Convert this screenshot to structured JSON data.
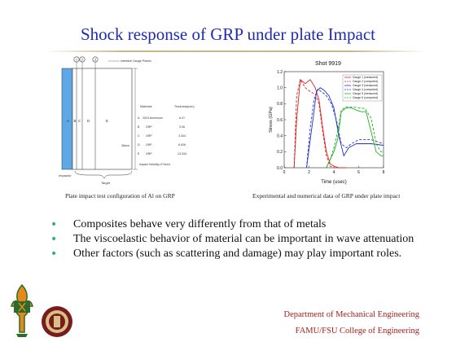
{
  "slide": {
    "title": "Shock response of GRP under plate Impact",
    "left_caption": "Plate impact test configuration of Al on GRP",
    "right_caption": "Experimental and numerical data of GRP under plate impact",
    "bullets": [
      "Composites behave very differently from that of metals",
      "The viscoelastic behavior of material can be important in wave attenuation",
      "Other factors (such as scattering and damage) may play important roles."
    ],
    "footer": {
      "line1": "Department of Mechanical Engineering",
      "line2": "FAMU/FSU College of Engineering"
    }
  },
  "diagram": {
    "gauge_numbers": [
      "1",
      "2",
      "3"
    ],
    "gauge_label": "Interface Gauge Planes",
    "layer_letters": [
      "A",
      "B",
      "C",
      "D",
      "E"
    ],
    "impactor_label": "Impactor",
    "target_label": "Target",
    "dim_label": "38mm",
    "table_header": [
      "Materials",
      "Thickness(mm)"
    ],
    "table_rows": [
      [
        "A",
        "2024 Aluminum",
        "6.4?"
      ],
      [
        "B",
        "GRP",
        "3.06"
      ],
      [
        "C",
        "GRP",
        "3.344"
      ],
      [
        "D",
        "GRP",
        "6.926"
      ],
      [
        "E",
        "GRP",
        "13.334"
      ]
    ],
    "velocity_note": "Impact Velocity=274m/s"
  },
  "chart_data": {
    "type": "line",
    "title": "Shot 9919",
    "xlabel": "Time (usec)",
    "ylabel": "Stress (GPa)",
    "xlim": [
      0,
      8
    ],
    "ylim": [
      0,
      1.2
    ],
    "xticks": [
      "0",
      "2",
      "4",
      "6",
      "8"
    ],
    "yticks": [
      "0.0",
      "0.2",
      "0.4",
      "0.6",
      "0.8",
      "1.0",
      "1.2"
    ],
    "series": [
      {
        "name": "Gauge 1 (measured)",
        "color": "#e02020",
        "dash": "",
        "x": [
          0.8,
          1.0,
          1.3,
          1.7,
          2.1,
          2.5,
          2.8,
          3.1,
          3.4,
          3.7,
          4.0,
          4.4,
          5.0
        ],
        "y": [
          0.0,
          0.6,
          1.1,
          1.05,
          1.1,
          1.0,
          0.85,
          0.5,
          0.2,
          0.05,
          0.02,
          0.0,
          0.0
        ]
      },
      {
        "name": "Gauge 2 (computed)",
        "color": "#e02020",
        "dash": "3,2",
        "x": [
          0.8,
          1.0,
          1.3,
          1.7,
          2.1,
          2.5,
          2.8,
          3.1,
          3.4,
          3.7,
          4.0,
          4.4,
          5.0
        ],
        "y": [
          0.0,
          0.9,
          1.1,
          1.0,
          0.95,
          0.92,
          0.8,
          0.45,
          0.15,
          0.02,
          0.0,
          0.0,
          0.0
        ]
      },
      {
        "name": "Gauge 3 (measured)",
        "color": "#2030d0",
        "dash": "",
        "x": [
          1.8,
          2.1,
          2.4,
          2.6,
          2.9,
          3.2,
          3.6,
          4.0,
          4.4,
          4.8,
          5.2,
          5.8,
          6.4,
          7.0,
          8.0
        ],
        "y": [
          0.0,
          0.35,
          0.7,
          0.95,
          1.0,
          0.97,
          0.9,
          0.75,
          0.4,
          0.15,
          0.25,
          0.3,
          0.3,
          0.3,
          0.28
        ]
      },
      {
        "name": "Gauge 4 (computed)",
        "color": "#2030d0",
        "dash": "3,2",
        "x": [
          1.8,
          2.1,
          2.4,
          2.7,
          3.0,
          3.4,
          3.8,
          4.2,
          4.6,
          5.0,
          5.4,
          6.0,
          7.0,
          8.0
        ],
        "y": [
          0.0,
          0.5,
          0.85,
          0.98,
          0.95,
          0.9,
          0.8,
          0.6,
          0.3,
          0.25,
          0.3,
          0.35,
          0.35,
          0.3
        ]
      },
      {
        "name": "Gauge 5 (measured)",
        "color": "#20b020",
        "dash": "",
        "x": [
          3.4,
          3.7,
          4.0,
          4.3,
          4.6,
          5.0,
          5.4,
          5.8,
          6.2,
          6.6,
          7.0,
          7.4,
          7.8,
          8.0
        ],
        "y": [
          0.0,
          0.1,
          0.2,
          0.35,
          0.7,
          0.75,
          0.75,
          0.72,
          0.7,
          0.7,
          0.45,
          0.2,
          0.15,
          0.15
        ]
      },
      {
        "name": "Gauge 6 (computed)",
        "color": "#20b020",
        "dash": "3,2",
        "x": [
          3.4,
          3.7,
          4.0,
          4.3,
          4.6,
          5.0,
          5.5,
          6.0,
          6.5,
          7.0,
          7.4,
          7.8,
          8.0
        ],
        "y": [
          0.0,
          0.1,
          0.25,
          0.45,
          0.72,
          0.76,
          0.76,
          0.75,
          0.74,
          0.62,
          0.3,
          0.2,
          0.2
        ]
      }
    ]
  }
}
